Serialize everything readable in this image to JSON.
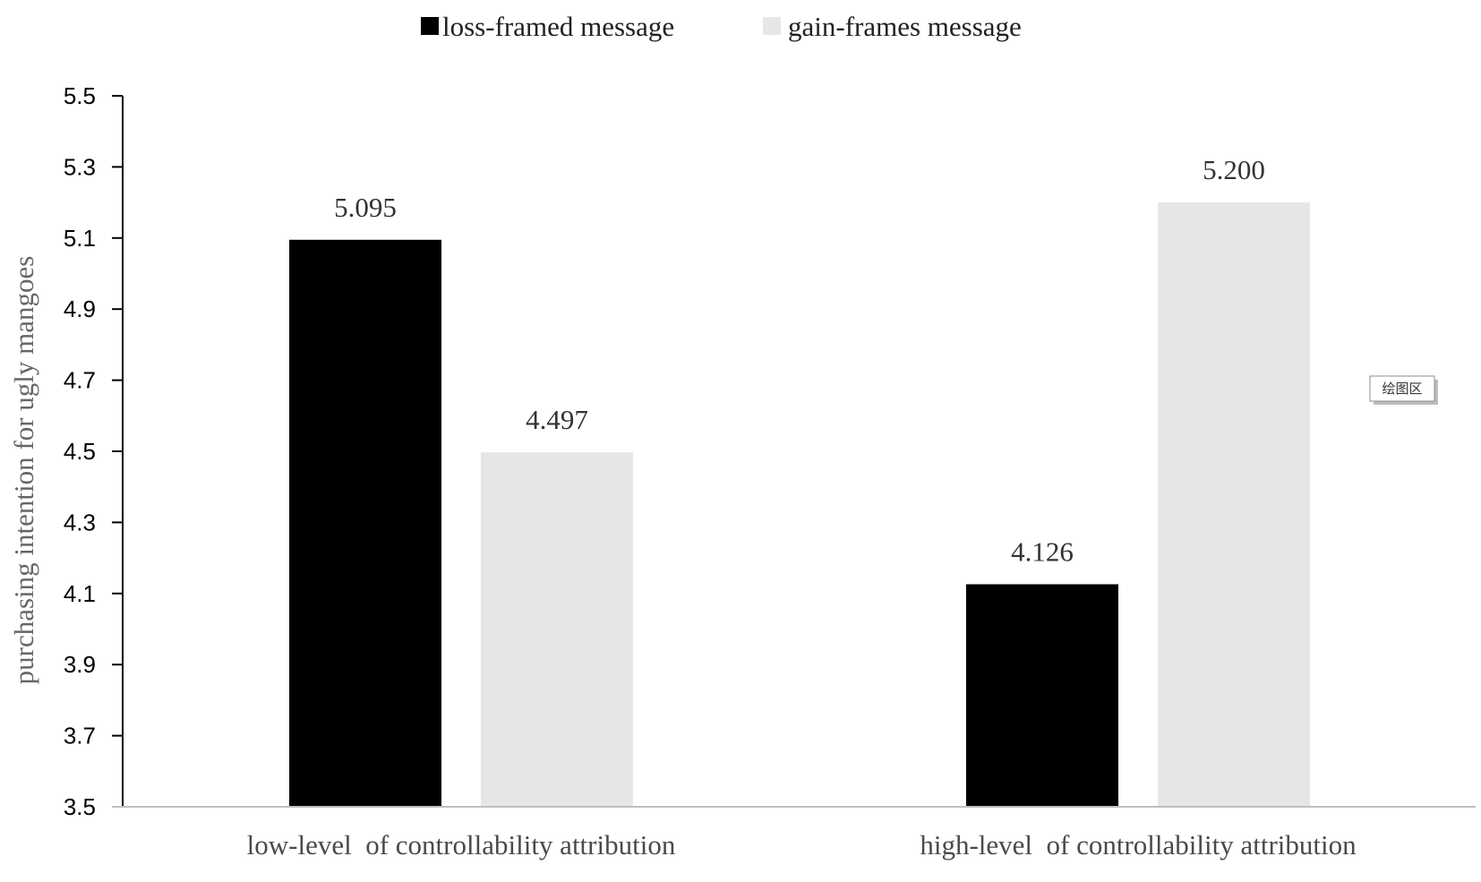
{
  "chart_data": {
    "type": "bar",
    "categories": [
      "low-level  of controllability attribution",
      "high-level  of controllability attribution"
    ],
    "series": [
      {
        "name": "loss-framed message",
        "values": [
          5.095,
          4.126
        ],
        "color": "#000000",
        "value_labels": [
          "5.095",
          "4.126"
        ]
      },
      {
        "name": "gain-frames message",
        "values": [
          4.497,
          5.2
        ],
        "color": "#e6e6e6",
        "value_labels": [
          "4.497",
          "5.200"
        ]
      }
    ],
    "title": "",
    "xlabel": "",
    "ylabel": "purchasing intention for ugly mangoes",
    "ylim": [
      3.5,
      5.5
    ],
    "yticks": [
      3.5,
      3.7,
      3.9,
      4.1,
      4.3,
      4.5,
      4.7,
      4.9,
      5.1,
      5.3,
      5.5
    ],
    "ytick_labels": [
      "3.5",
      "3.7",
      "3.9",
      "4.1",
      "4.3",
      "4.5",
      "4.7",
      "4.9",
      "5.1",
      "5.3",
      "5.5"
    ],
    "grid": false,
    "legend_position": "top-center"
  },
  "plot_area_tag": "绘图区"
}
